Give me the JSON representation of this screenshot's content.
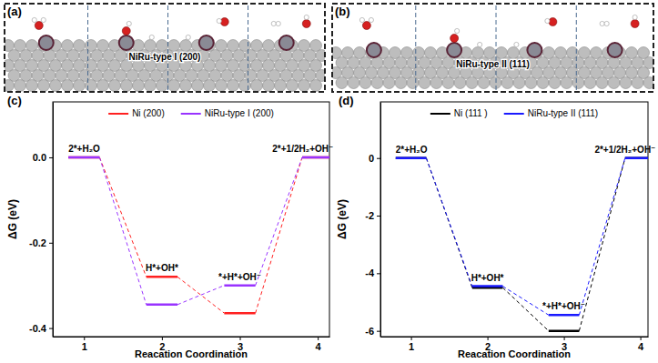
{
  "structures": [
    {
      "label": "(a)",
      "title": "NiRu-type I (200)"
    },
    {
      "label": "(b)",
      "title": "NiRu-type II (111)"
    }
  ],
  "chart_data": [
    {
      "type": "step",
      "title": "(c)",
      "x_label": "Reacation Coordination",
      "y_label": "ΔG (eV)",
      "x": [
        1,
        2,
        3,
        4
      ],
      "annotations": [
        "2*+H₂O",
        "H*+OH*",
        "*+H*+OH⁻",
        "2*+1/2H₂+OH⁻"
      ],
      "series": [
        {
          "name": "Ni (200)",
          "color": "#ff2020",
          "values": [
            0,
            -0.28,
            -0.365,
            0
          ]
        },
        {
          "name": "NiRu-type I (200)",
          "color": "#9933ff",
          "values": [
            0,
            -0.345,
            -0.3,
            0
          ]
        }
      ],
      "xlim": [
        0.6,
        4.15
      ],
      "xticks": [
        1,
        2,
        3,
        4
      ],
      "ylim": [
        -0.42,
        0.13
      ],
      "yticks": [
        -0.4,
        -0.2,
        {
          "value": 0,
          "label": "0.0"
        }
      ],
      "legend": "top",
      "line_style": "dashed"
    },
    {
      "type": "step",
      "title": "(d)",
      "x_label": "Reacation Coordination",
      "y_label": "ΔG (eV)",
      "x": [
        1,
        2,
        3,
        4
      ],
      "annotations": [
        "2*+H₂O",
        "H*+OH*",
        "*+H*+OH⁻",
        "2*+1/2H₂+OH⁻"
      ],
      "series": [
        {
          "name": "Ni (111 )",
          "color": "#000000",
          "values": [
            0,
            -4.5,
            -6.0,
            0
          ]
        },
        {
          "name": "NiRu-type II (111)",
          "color": "#1a1aff",
          "values": [
            0,
            -4.45,
            -5.45,
            0
          ]
        }
      ],
      "xlim": [
        0.6,
        4.1
      ],
      "xticks": [
        1,
        2,
        3,
        4
      ],
      "ylim": [
        -6.2,
        1.95
      ],
      "yticks": [
        -6,
        -4,
        -2,
        0
      ],
      "legend": "top",
      "line_style": "dashed"
    }
  ]
}
